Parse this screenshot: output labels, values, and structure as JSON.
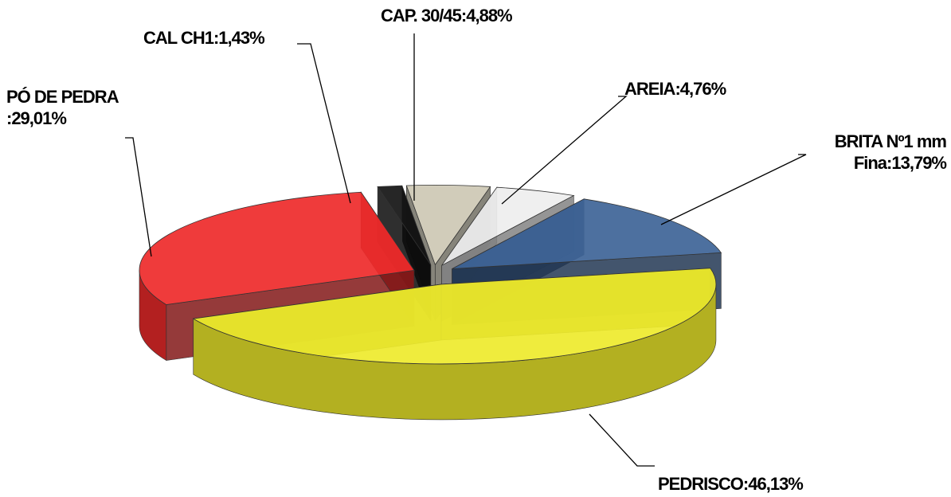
{
  "chart_data": {
    "type": "pie3d",
    "categories": [
      "PÓ DE PEDRA",
      "CAL CH1",
      "CAP. 30/45",
      "AREIA",
      "BRITA Nº1 mm Fina",
      "PEDRISCO"
    ],
    "values": [
      29.01,
      1.43,
      4.88,
      4.76,
      13.79,
      46.13
    ],
    "value_labels": [
      ":29,01%",
      ":1,43%",
      ":4,88%",
      ":4,76%",
      ":13,79%",
      ":46,13%"
    ],
    "colors": [
      "#ee2a2a",
      "#141414",
      "#cdc8b4",
      "#eeeeee",
      "#3e6497",
      "#eeea2c"
    ]
  }
}
